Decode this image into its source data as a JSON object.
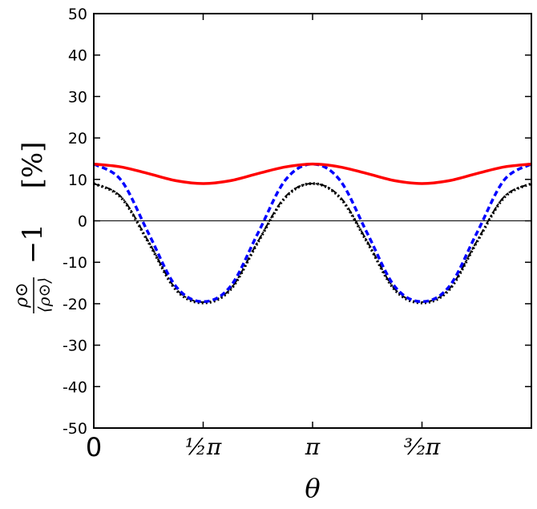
{
  "chart_data": {
    "type": "line",
    "xlabel": "θ",
    "ylabel": {
      "numerator": "ρ⊙",
      "denominator": "⟨ρ⊙⟩",
      "minus": "−1",
      "unit": "[%]"
    },
    "xlim": [
      0,
      6.2832
    ],
    "ylim": [
      -50,
      50
    ],
    "grid": false,
    "legend": "none",
    "x_ticks": [
      {
        "value": 0,
        "label": "0"
      },
      {
        "value": 1.5708,
        "label": "½π"
      },
      {
        "value": 3.1416,
        "label": "π"
      },
      {
        "value": 4.7124,
        "label": "³⁄₂π"
      }
    ],
    "y_ticks": [
      50,
      40,
      30,
      20,
      10,
      0,
      -10,
      -20,
      -30,
      -40,
      -50
    ],
    "y_tick_labels": [
      "50",
      "40",
      "30",
      "20",
      "10",
      "0",
      "-10",
      "-20",
      "-30",
      "-40",
      "-50"
    ],
    "reference_line": {
      "y": 0,
      "color": "#000000"
    },
    "x": [
      0,
      0.3927,
      0.7854,
      1.1781,
      1.5708,
      1.9635,
      2.3562,
      2.7489,
      3.1416,
      3.5343,
      3.927,
      4.3197,
      4.7124,
      5.1051,
      5.4978,
      5.8905,
      6.2832
    ],
    "series": [
      {
        "style": "solid",
        "color": "#ff0000",
        "values": [
          13.7,
          13.0,
          11.4,
          9.7,
          9.0,
          9.7,
          11.4,
          13.0,
          13.7,
          13.0,
          11.4,
          9.7,
          9.0,
          9.7,
          11.4,
          13.0,
          13.7
        ]
      },
      {
        "style": "dashed",
        "color": "#0000ff",
        "values": [
          13.7,
          9.8,
          -3.0,
          -15.8,
          -19.5,
          -15.8,
          -3.0,
          9.8,
          13.7,
          9.8,
          -3.0,
          -15.8,
          -19.5,
          -15.8,
          -3.0,
          9.8,
          13.7
        ]
      },
      {
        "style": "dotted",
        "color": "#000000",
        "values": [
          9.0,
          5.6,
          -5.2,
          -16.6,
          -19.8,
          -16.6,
          -5.2,
          5.6,
          9.0,
          5.6,
          -5.2,
          -16.6,
          -19.8,
          -16.6,
          -5.2,
          5.6,
          9.0
        ]
      },
      {
        "style": "dashdot",
        "color": "#000000",
        "values": [
          9.0,
          5.8,
          -5.0,
          -16.4,
          -19.6,
          -16.4,
          -5.0,
          5.8,
          9.0,
          5.8,
          -5.0,
          -16.4,
          -19.6,
          -16.4,
          -5.0,
          5.8,
          9.0
        ]
      }
    ]
  }
}
